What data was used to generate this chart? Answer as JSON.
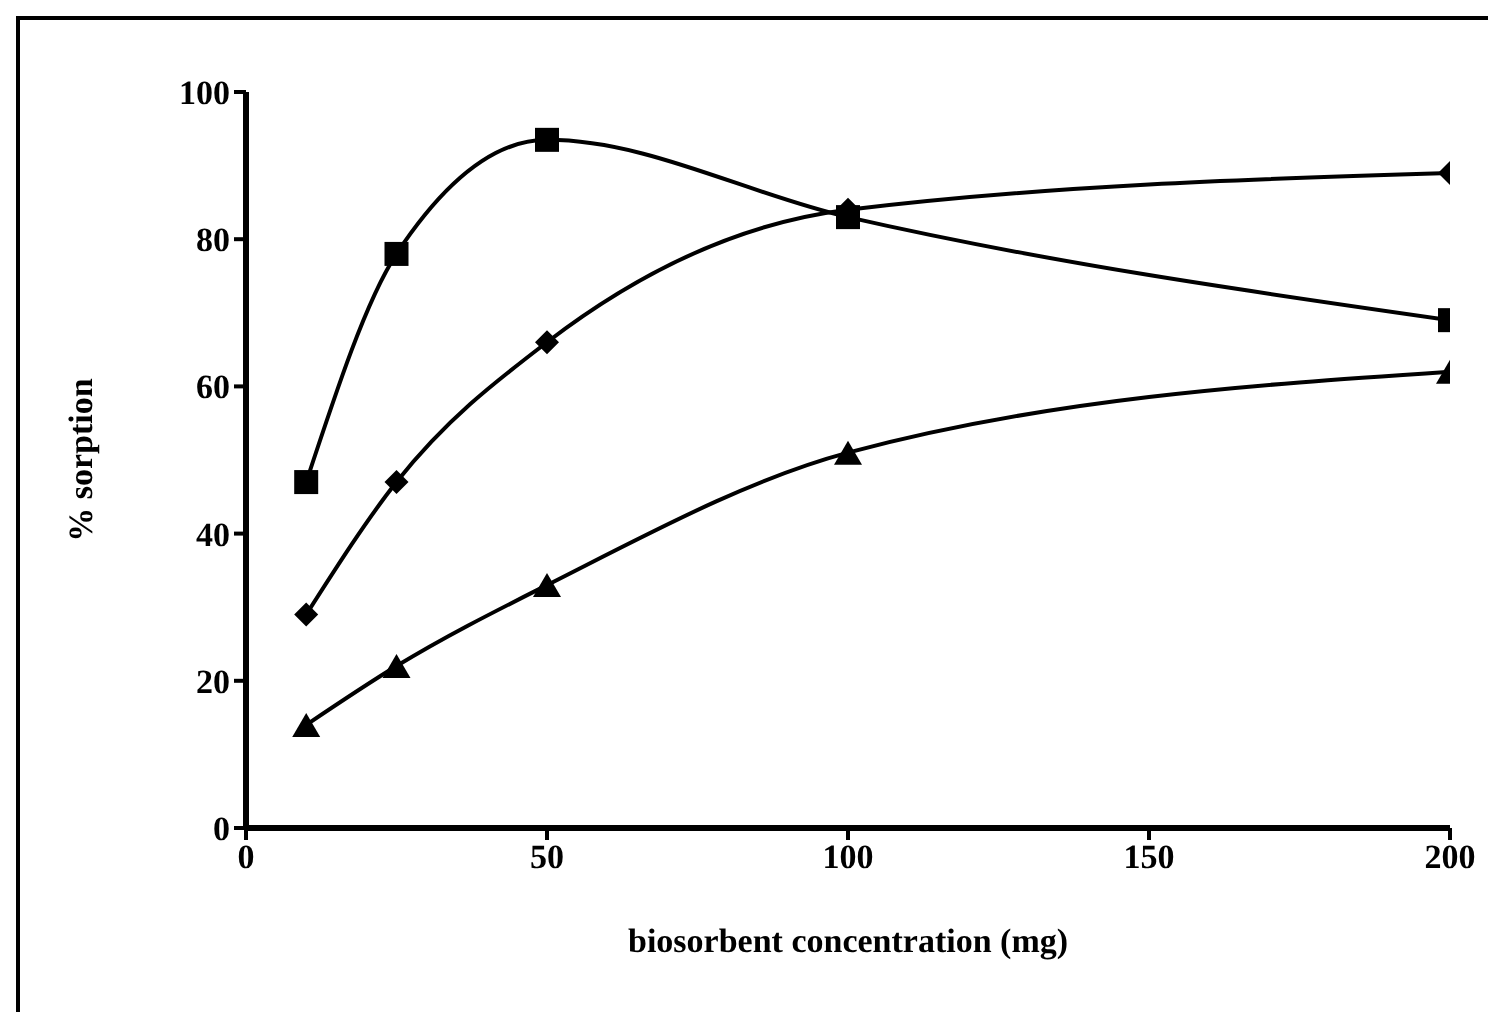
{
  "chart_data": {
    "type": "line",
    "xlabel": "biosorbent concentration (mg)",
    "ylabel": "% sorption",
    "x": [
      10,
      25,
      50,
      100,
      200
    ],
    "series": [
      {
        "color": "#000000",
        "marker": "square",
        "values": [
          47,
          78,
          93.5,
          83,
          69
        ]
      },
      {
        "color": "#000000",
        "marker": "diamond",
        "values": [
          29,
          47,
          66,
          84,
          89
        ]
      },
      {
        "color": "#000000",
        "marker": "triangle",
        "values": [
          14,
          22,
          33,
          51,
          62
        ]
      }
    ],
    "xlim": [
      0,
      200
    ],
    "xticks": [
      0,
      50,
      100,
      150,
      200
    ],
    "ylim": [
      0,
      100
    ],
    "yticks": [
      0,
      20,
      40,
      60,
      80,
      100
    ],
    "grid": false,
    "legend": false,
    "line_style": "solid"
  }
}
